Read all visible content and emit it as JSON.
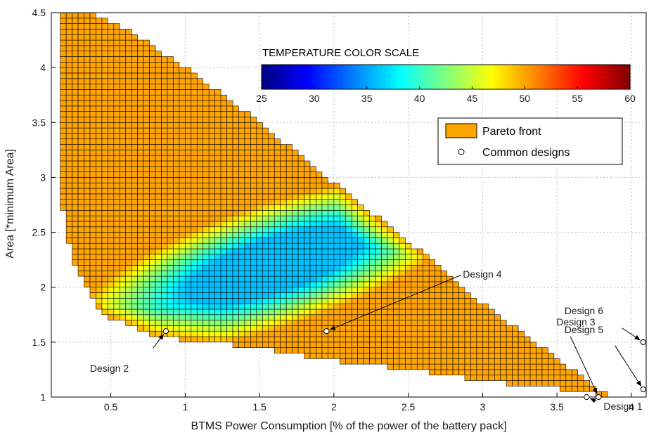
{
  "chart_data": {
    "type": "heatmap",
    "xlabel": "BTMS Power Consumption [% of the power of the battery pack]",
    "ylabel": "Area [*minimum Area]",
    "xlim": [
      0.1,
      4.1
    ],
    "ylim": [
      1,
      4.5
    ],
    "xticks": [
      0.5,
      1,
      1.5,
      2,
      2.5,
      3,
      3.5,
      4
    ],
    "xtick_labels": [
      "0.5",
      "1",
      "1.5",
      "2",
      "2.5",
      "3",
      "3.5",
      "4"
    ],
    "yticks": [
      1,
      1.5,
      2,
      2.5,
      3,
      3.5,
      4,
      4.5
    ],
    "ytick_labels": [
      "1",
      "1.5",
      "2",
      "2.5",
      "3",
      "3.5",
      "4",
      "4.5"
    ],
    "grid": true,
    "colorbar": {
      "title": "TEMPERATURE COLOR SCALE",
      "min": 25,
      "max": 60,
      "ticks": [
        25,
        30,
        35,
        40,
        45,
        50,
        55,
        60
      ],
      "tick_labels": [
        "25",
        "30",
        "35",
        "40",
        "45",
        "50",
        "55",
        "60"
      ],
      "colormap": "jet"
    },
    "legend": {
      "placement": "top-right",
      "entries": [
        {
          "label": "Pareto front",
          "marker": "orange-square",
          "color": "#ffa500"
        },
        {
          "label": "Common designs",
          "marker": "open-circle"
        }
      ]
    },
    "region": {
      "description_values": "feasible design space boundary in data units",
      "upper_edge": [
        [
          0.22,
          4.5
        ],
        [
          0.35,
          4.5
        ],
        [
          0.6,
          4.35
        ],
        [
          1.0,
          4.0
        ],
        [
          1.5,
          3.5
        ],
        [
          2.0,
          2.95
        ],
        [
          2.5,
          2.42
        ],
        [
          3.0,
          1.85
        ],
        [
          3.5,
          1.35
        ],
        [
          3.85,
          1.0
        ]
      ],
      "lower_edge": [
        [
          0.15,
          2.9
        ],
        [
          0.25,
          2.2
        ],
        [
          0.45,
          1.75
        ],
        [
          0.8,
          1.55
        ],
        [
          1.5,
          1.45
        ],
        [
          2.0,
          1.33
        ],
        [
          2.5,
          1.25
        ],
        [
          3.0,
          1.15
        ],
        [
          3.5,
          1.08
        ],
        [
          3.85,
          1.0
        ]
      ],
      "cold_core_center": [
        1.6,
        2.2
      ],
      "cold_core_temperature": 25,
      "edge_temperature": 50
    },
    "designs": [
      {
        "label": "Design 1",
        "x": 3.7,
        "y": 1.0
      },
      {
        "label": "Design 2",
        "x": 0.87,
        "y": 1.6
      },
      {
        "label": "Design 3",
        "x": 3.78,
        "y": 1.0
      },
      {
        "label": "Design 4",
        "x": 1.95,
        "y": 1.6
      },
      {
        "label": "Design 5",
        "x": 4.08,
        "y": 1.07
      },
      {
        "label": "Design 6",
        "x": 4.08,
        "y": 1.5
      }
    ],
    "annotations": [
      {
        "text": "Design 1",
        "target": "Design 1"
      },
      {
        "text": "Design 2",
        "target": "Design 2"
      },
      {
        "text": "Design 3",
        "target": "Design 3"
      },
      {
        "text": "Design 4",
        "target": "Design 4"
      },
      {
        "text": "Design 5",
        "target": "Design 5"
      },
      {
        "text": "Design 6",
        "target": "Design 6"
      }
    ]
  }
}
